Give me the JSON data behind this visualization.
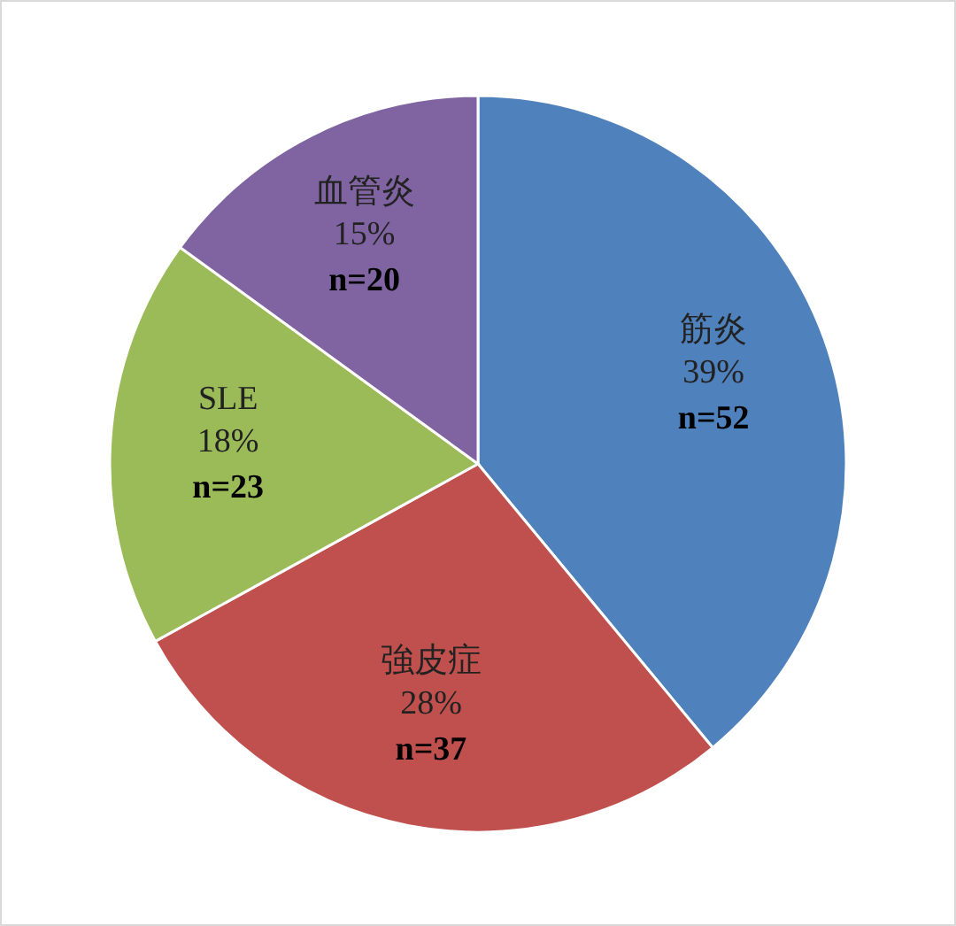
{
  "chart_data": {
    "type": "pie",
    "categories": [
      "筋炎",
      "強皮症",
      "SLE",
      "血管炎"
    ],
    "values": [
      39,
      28,
      18,
      15
    ],
    "colors": [
      "#4f81bd",
      "#c0504d",
      "#9bbb59",
      "#8064a2"
    ],
    "value_labels": [
      "39%",
      "28%",
      "18%",
      "15%"
    ],
    "annotations": [
      "n=52",
      "n=37",
      "n=23",
      "n=20"
    ]
  }
}
